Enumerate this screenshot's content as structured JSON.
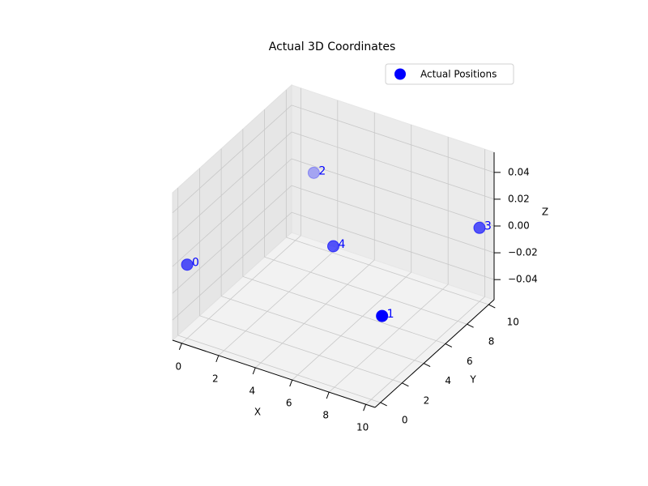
{
  "chart_data": {
    "type": "scatter3d",
    "title": "Actual 3D Coordinates",
    "x_label": "X",
    "y_label": "Y",
    "z_label": "Z",
    "series": [
      {
        "name": "Actual Positions",
        "color": "#0000ff",
        "x": [
          0,
          10,
          1,
          10,
          5
        ],
        "y": [
          0,
          1,
          10,
          10,
          5
        ],
        "z": [
          0,
          0,
          0,
          0,
          0
        ],
        "labels": [
          "0",
          "1",
          "2",
          "3",
          "4"
        ]
      }
    ],
    "xlim": [
      -0.5,
      10.5
    ],
    "ylim": [
      -0.5,
      10.5
    ],
    "zlim": [
      -0.055,
      0.055
    ],
    "xticks": [
      0,
      2,
      4,
      6,
      8,
      10
    ],
    "yticks": [
      0,
      2,
      4,
      6,
      8,
      10
    ],
    "zticks": [
      {
        "value": -0.04,
        "label": "−0.04"
      },
      {
        "value": -0.02,
        "label": "−0.02"
      },
      {
        "value": 0,
        "label": "0.00"
      },
      0.02,
      0.04
    ],
    "legend": "upper right",
    "grid": true
  }
}
